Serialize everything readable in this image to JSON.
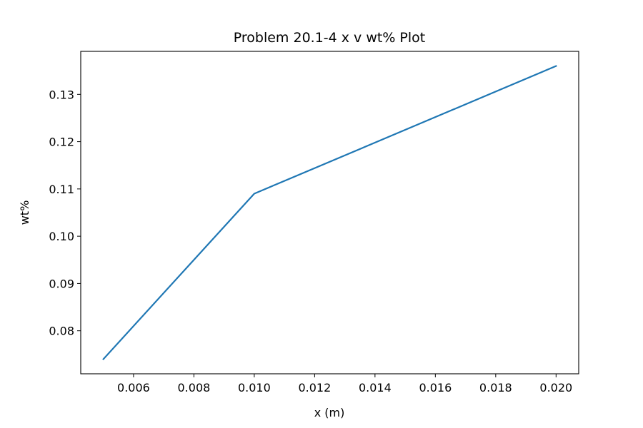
{
  "chart_data": {
    "type": "line",
    "title": "Problem 20.1-4 x v wt% Plot",
    "xlabel": "x (m)",
    "ylabel": "wt%",
    "xlim": [
      0.00425,
      0.02075
    ],
    "ylim": [
      0.0709,
      0.1391
    ],
    "xticks": [
      "0.006",
      "0.008",
      "0.010",
      "0.012",
      "0.014",
      "0.016",
      "0.018",
      "0.020"
    ],
    "xtick_values": [
      0.006,
      0.008,
      0.01,
      0.012,
      0.014,
      0.016,
      0.018,
      0.02
    ],
    "yticks": [
      "0.08",
      "0.09",
      "0.10",
      "0.11",
      "0.12",
      "0.13"
    ],
    "ytick_values": [
      0.08,
      0.09,
      0.1,
      0.11,
      0.12,
      0.13
    ],
    "grid": false,
    "series": [
      {
        "color": "#1f77b4",
        "x": [
          0.005,
          0.01,
          0.02
        ],
        "y": [
          0.074,
          0.109,
          0.136
        ]
      }
    ]
  }
}
